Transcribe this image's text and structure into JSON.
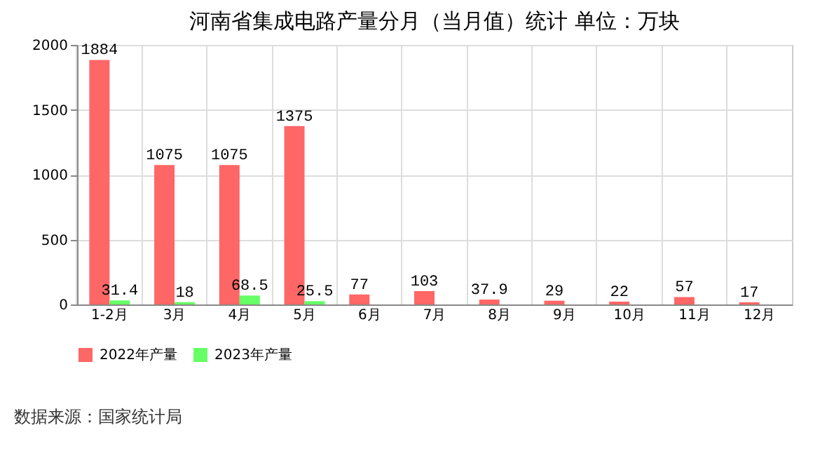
{
  "chart_data": {
    "type": "bar",
    "title": "河南省集成电路产量分月（当月值）统计 单位：万块",
    "categories": [
      "1-2月",
      "3月",
      "4月",
      "5月",
      "6月",
      "7月",
      "8月",
      "9月",
      "10月",
      "11月",
      "12月"
    ],
    "series": [
      {
        "name": "2022年产量",
        "color": "#ff6666",
        "values": [
          1884,
          1075,
          1075,
          1375,
          77,
          103,
          37.9,
          29,
          22,
          57,
          17
        ]
      },
      {
        "name": "2023年产量",
        "color": "#66ff66",
        "values": [
          31.4,
          18,
          68.5,
          25.5,
          null,
          null,
          null,
          null,
          null,
          null,
          null
        ]
      }
    ],
    "ylim": [
      0,
      2000
    ],
    "yticks": [
      0,
      500,
      1000,
      1500,
      2000
    ],
    "grid": true,
    "legend": "bottom",
    "data_labels": true,
    "annotations": [
      "数据来源：国家统计局"
    ]
  }
}
